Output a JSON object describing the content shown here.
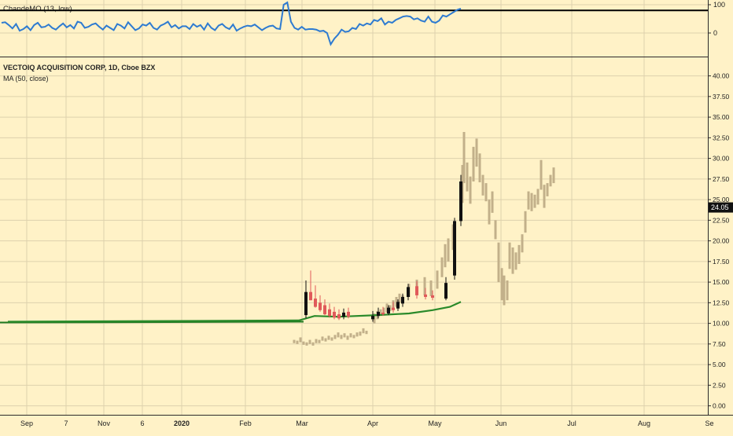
{
  "oscillator": {
    "label": "ChandeMO (13, low)",
    "ticks": [
      100,
      0
    ],
    "ylim": [
      -80,
      110
    ],
    "threshold": 80,
    "line_color": "#2e7bd1",
    "values": [
      36,
      38,
      28,
      16,
      32,
      8,
      14,
      24,
      10,
      28,
      36,
      20,
      22,
      30,
      18,
      12,
      24,
      34,
      20,
      28,
      16,
      40,
      36,
      18,
      22,
      30,
      34,
      22,
      12,
      26,
      18,
      10,
      32,
      26,
      16,
      38,
      24,
      10,
      16,
      30,
      26,
      36,
      18,
      12,
      26,
      32,
      40,
      20,
      28,
      16,
      24,
      24,
      14,
      32,
      22,
      28,
      12,
      34,
      18,
      10,
      26,
      32,
      20,
      14,
      30,
      8,
      16,
      22,
      26,
      24,
      30,
      20,
      10,
      18,
      24,
      26,
      16,
      14,
      100,
      108,
      40,
      18,
      12,
      22,
      12,
      14,
      14,
      12,
      6,
      8,
      0,
      -40,
      -20,
      -6,
      12,
      4,
      6,
      18,
      14,
      32,
      26,
      34,
      30,
      46,
      42,
      52,
      30,
      40,
      36,
      46,
      52,
      58,
      60,
      58,
      48,
      52,
      44,
      40,
      58,
      40,
      36,
      44,
      62,
      58,
      66,
      74,
      82,
      86
    ]
  },
  "price": {
    "header": "VECTOIQ ACQUISITION CORP, 1D, Cboe BZX",
    "ma_label": "MA (50, close)",
    "ticks": [
      "40.00",
      "37.50",
      "35.00",
      "32.50",
      "30.00",
      "27.50",
      "25.00",
      "22.50",
      "20.00",
      "17.50",
      "15.00",
      "12.50",
      "10.00",
      "7.50",
      "5.00",
      "2.50",
      "0.00"
    ],
    "ylim": [
      -0.8,
      41.2
    ],
    "last_price": "24.05",
    "up_color": "#111111",
    "down_color": "#e05a5a",
    "ma_color": "#2a8a2a",
    "ghost_color": "#c2b08a"
  },
  "x_axis": {
    "labels": [
      "Sep",
      "7",
      "Nov",
      "6",
      "2020",
      "Feb",
      "Mar",
      "Apr",
      "May",
      "Jun",
      "Jul",
      "Aug",
      "Se"
    ],
    "bold_label": "2020"
  },
  "chart_data": [
    {
      "type": "line",
      "title": "ChandeMO (13, low)",
      "ylim": [
        -80,
        110
      ],
      "threshold": 80,
      "series": [
        {
          "name": "ChandeMO (13, low)",
          "values": "see oscillator.values"
        }
      ]
    },
    {
      "type": "candlestick",
      "title": "VECTOIQ ACQUISITION CORP, 1D, Cboe BZX",
      "x_ticks": [
        "Sep",
        "7",
        "Nov",
        "6",
        "2020",
        "Feb",
        "Mar",
        "Apr",
        "May",
        "Jun",
        "Jul",
        "Aug",
        "Se"
      ],
      "ylim": [
        -0.8,
        41.2
      ],
      "last_price": 24.05,
      "flat_base": 10.1,
      "candles": [
        {
          "d": "Mar 2",
          "o": 11.0,
          "h": 15.2,
          "l": 10.6,
          "c": 13.8
        },
        {
          "d": "Mar 4",
          "o": 13.8,
          "h": 16.4,
          "l": 12.8,
          "c": 12.8
        },
        {
          "d": "Mar 6",
          "o": 13.0,
          "h": 14.6,
          "l": 11.9,
          "c": 12.0
        },
        {
          "d": "Mar 9",
          "o": 12.5,
          "h": 13.4,
          "l": 11.4,
          "c": 11.6
        },
        {
          "d": "Mar 11",
          "o": 12.2,
          "h": 12.9,
          "l": 11.0,
          "c": 11.1
        },
        {
          "d": "Mar 13",
          "o": 11.7,
          "h": 12.4,
          "l": 10.7,
          "c": 10.9
        },
        {
          "d": "Mar 17",
          "o": 11.4,
          "h": 12.0,
          "l": 10.5,
          "c": 10.7
        },
        {
          "d": "Mar 20",
          "o": 11.1,
          "h": 11.7,
          "l": 10.4,
          "c": 10.6
        },
        {
          "d": "Mar 24",
          "o": 10.8,
          "h": 11.8,
          "l": 10.5,
          "c": 11.3
        },
        {
          "d": "Mar 27",
          "o": 11.4,
          "h": 11.9,
          "l": 10.6,
          "c": 10.8
        },
        {
          "d": "Mar 31",
          "o": 10.5,
          "h": 11.5,
          "l": 10.2,
          "c": 10.9
        },
        {
          "d": "Apr 3",
          "o": 10.9,
          "h": 11.9,
          "l": 10.6,
          "c": 11.4
        },
        {
          "d": "Apr 7",
          "o": 11.3,
          "h": 12.0,
          "l": 10.9,
          "c": 11.1
        },
        {
          "d": "Apr 10",
          "o": 11.2,
          "h": 12.2,
          "l": 11.0,
          "c": 11.9
        },
        {
          "d": "Apr 14",
          "o": 11.9,
          "h": 12.6,
          "l": 11.3,
          "c": 11.6
        },
        {
          "d": "Apr 17",
          "o": 11.8,
          "h": 12.9,
          "l": 11.5,
          "c": 12.6
        },
        {
          "d": "Apr 21",
          "o": 12.4,
          "h": 13.6,
          "l": 12.0,
          "c": 13.2
        },
        {
          "d": "Apr 23",
          "o": 13.2,
          "h": 14.8,
          "l": 12.8,
          "c": 14.4
        },
        {
          "d": "Apr 27",
          "o": 14.5,
          "h": 15.1,
          "l": 13.0,
          "c": 13.4
        },
        {
          "d": "Apr 29",
          "o": 13.5,
          "h": 14.3,
          "l": 12.9,
          "c": 13.2
        },
        {
          "d": "May 1",
          "o": 13.4,
          "h": 14.0,
          "l": 12.8,
          "c": 13.1
        },
        {
          "d": "May 4",
          "o": 13.0,
          "h": 15.6,
          "l": 12.8,
          "c": 14.9
        },
        {
          "d": "May 6",
          "o": 15.8,
          "h": 22.8,
          "l": 15.3,
          "c": 22.4
        },
        {
          "d": "May 7",
          "o": 22.4,
          "h": 28.0,
          "l": 21.8,
          "c": 27.2
        }
      ],
      "ma50": [
        [
          10,
          10.2
        ],
        [
          380,
          10.35
        ],
        [
          400,
          10.9
        ],
        [
          430,
          10.8
        ],
        [
          480,
          11.0
        ],
        [
          520,
          11.2
        ],
        [
          550,
          11.6
        ],
        [
          572,
          12.0
        ],
        [
          586,
          12.6
        ]
      ],
      "ghost_bars": "future/prior price bars drawn faded (Mar lows ~7.5-9, May-Jun rally to ~33, pullback to ~12.5, then ~24-29)"
    }
  ]
}
